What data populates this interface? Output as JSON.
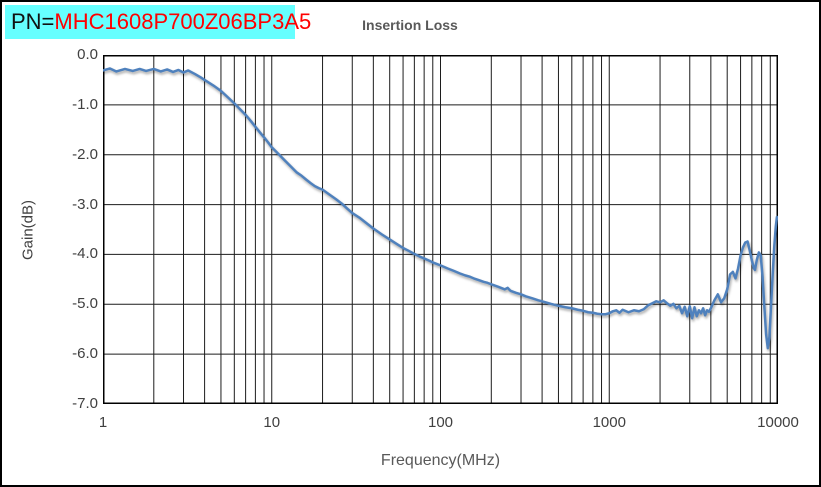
{
  "header": {
    "pn_prefix": "PN=",
    "pn_value": "MHC1608P700Z06BP3A5",
    "pn_box_bg": "#66ffff",
    "pn_prefix_color": "#111111",
    "pn_value_color": "#ff0000",
    "title": "Insertion Loss"
  },
  "chart_data": {
    "type": "line",
    "title": "Insertion Loss",
    "xlabel": "Frequency(MHz)",
    "ylabel": "Gain(dB)",
    "x_scale": "log",
    "xlim": [
      1,
      10000
    ],
    "ylim": [
      -7.0,
      0.0
    ],
    "x_tick_labels": [
      "1",
      "10",
      "100",
      "1000",
      "10000"
    ],
    "y_tick_labels": [
      "0.0",
      "-1.0",
      "-2.0",
      "-3.0",
      "-4.0",
      "-5.0",
      "-6.0",
      "-7.0"
    ],
    "grid": "vertical log-decade+minor lines, horizontal every 1 dB, black on white",
    "legend": "none",
    "line_color": "#4f81bd",
    "series": [
      {
        "name": "Insertion Loss",
        "points": [
          [
            1,
            -0.31
          ],
          [
            1.1,
            -0.27
          ],
          [
            1.2,
            -0.33
          ],
          [
            1.35,
            -0.28
          ],
          [
            1.5,
            -0.32
          ],
          [
            1.65,
            -0.28
          ],
          [
            1.8,
            -0.32
          ],
          [
            2,
            -0.28
          ],
          [
            2.2,
            -0.33
          ],
          [
            2.4,
            -0.29
          ],
          [
            2.6,
            -0.34
          ],
          [
            2.8,
            -0.3
          ],
          [
            3,
            -0.35
          ],
          [
            3.2,
            -0.31
          ],
          [
            3.5,
            -0.38
          ],
          [
            3.8,
            -0.45
          ],
          [
            4,
            -0.5
          ],
          [
            4.5,
            -0.61
          ],
          [
            5,
            -0.72
          ],
          [
            5.5,
            -0.85
          ],
          [
            6,
            -0.97
          ],
          [
            6.5,
            -1.09
          ],
          [
            7,
            -1.2
          ],
          [
            7.5,
            -1.32
          ],
          [
            8,
            -1.44
          ],
          [
            8.5,
            -1.55
          ],
          [
            9,
            -1.65
          ],
          [
            9.5,
            -1.75
          ],
          [
            10,
            -1.85
          ],
          [
            11,
            -1.99
          ],
          [
            12,
            -2.12
          ],
          [
            13,
            -2.24
          ],
          [
            14,
            -2.35
          ],
          [
            15,
            -2.42
          ],
          [
            16,
            -2.5
          ],
          [
            17,
            -2.57
          ],
          [
            18,
            -2.63
          ],
          [
            19,
            -2.67
          ],
          [
            20,
            -2.7
          ],
          [
            22,
            -2.8
          ],
          [
            24,
            -2.89
          ],
          [
            26,
            -2.98
          ],
          [
            28,
            -3.08
          ],
          [
            30,
            -3.17
          ],
          [
            33,
            -3.26
          ],
          [
            36,
            -3.36
          ],
          [
            40,
            -3.48
          ],
          [
            45,
            -3.6
          ],
          [
            50,
            -3.7
          ],
          [
            55,
            -3.79
          ],
          [
            60,
            -3.87
          ],
          [
            65,
            -3.93
          ],
          [
            70,
            -3.99
          ],
          [
            75,
            -4.04
          ],
          [
            80,
            -4.08
          ],
          [
            85,
            -4.12
          ],
          [
            90,
            -4.16
          ],
          [
            95,
            -4.19
          ],
          [
            100,
            -4.22
          ],
          [
            110,
            -4.28
          ],
          [
            120,
            -4.33
          ],
          [
            130,
            -4.38
          ],
          [
            140,
            -4.42
          ],
          [
            150,
            -4.45
          ],
          [
            160,
            -4.49
          ],
          [
            170,
            -4.52
          ],
          [
            180,
            -4.55
          ],
          [
            190,
            -4.57
          ],
          [
            200,
            -4.6
          ],
          [
            220,
            -4.65
          ],
          [
            240,
            -4.7
          ],
          [
            250,
            -4.67
          ],
          [
            260,
            -4.73
          ],
          [
            280,
            -4.77
          ],
          [
            300,
            -4.8
          ],
          [
            320,
            -4.84
          ],
          [
            350,
            -4.88
          ],
          [
            380,
            -4.92
          ],
          [
            400,
            -4.94
          ],
          [
            450,
            -4.99
          ],
          [
            500,
            -5.03
          ],
          [
            550,
            -5.06
          ],
          [
            600,
            -5.08
          ],
          [
            650,
            -5.11
          ],
          [
            700,
            -5.13
          ],
          [
            750,
            -5.16
          ],
          [
            800,
            -5.17
          ],
          [
            850,
            -5.19
          ],
          [
            900,
            -5.2
          ],
          [
            950,
            -5.2
          ],
          [
            1000,
            -5.18
          ],
          [
            1050,
            -5.14
          ],
          [
            1100,
            -5.12
          ],
          [
            1150,
            -5.17
          ],
          [
            1200,
            -5.11
          ],
          [
            1300,
            -5.16
          ],
          [
            1400,
            -5.12
          ],
          [
            1500,
            -5.14
          ],
          [
            1600,
            -5.1
          ],
          [
            1700,
            -5.02
          ],
          [
            1800,
            -4.98
          ],
          [
            1900,
            -4.94
          ],
          [
            2000,
            -4.96
          ],
          [
            2100,
            -4.92
          ],
          [
            2200,
            -4.98
          ],
          [
            2300,
            -5.03
          ],
          [
            2400,
            -4.99
          ],
          [
            2500,
            -5.08
          ],
          [
            2600,
            -5.03
          ],
          [
            2700,
            -5.18
          ],
          [
            2800,
            -5.05
          ],
          [
            2900,
            -5.24
          ],
          [
            3000,
            -5.04
          ],
          [
            3100,
            -5.28
          ],
          [
            3200,
            -5.06
          ],
          [
            3300,
            -5.24
          ],
          [
            3400,
            -5.12
          ],
          [
            3500,
            -5.18
          ],
          [
            3600,
            -5.08
          ],
          [
            3700,
            -5.22
          ],
          [
            3800,
            -5.12
          ],
          [
            3900,
            -5.15
          ],
          [
            4000,
            -5.08
          ],
          [
            4200,
            -4.92
          ],
          [
            4400,
            -4.8
          ],
          [
            4600,
            -4.96
          ],
          [
            4800,
            -4.88
          ],
          [
            5000,
            -4.7
          ],
          [
            5200,
            -4.4
          ],
          [
            5400,
            -4.35
          ],
          [
            5600,
            -4.48
          ],
          [
            5800,
            -4.28
          ],
          [
            6000,
            -4.02
          ],
          [
            6200,
            -3.86
          ],
          [
            6400,
            -3.76
          ],
          [
            6600,
            -3.74
          ],
          [
            6800,
            -3.92
          ],
          [
            7000,
            -4.12
          ],
          [
            7200,
            -4.28
          ],
          [
            7300,
            -4.31
          ],
          [
            7500,
            -4.1
          ],
          [
            7700,
            -3.96
          ],
          [
            7900,
            -4.02
          ],
          [
            8100,
            -4.45
          ],
          [
            8300,
            -5.05
          ],
          [
            8500,
            -5.6
          ],
          [
            8700,
            -5.88
          ],
          [
            8900,
            -5.65
          ],
          [
            9100,
            -5.0
          ],
          [
            9300,
            -4.4
          ],
          [
            9500,
            -3.85
          ],
          [
            9700,
            -3.45
          ],
          [
            9850,
            -3.25
          ],
          [
            10000,
            -3.28
          ]
        ]
      }
    ]
  }
}
